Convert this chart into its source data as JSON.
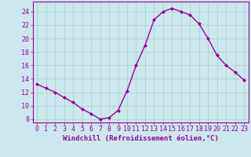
{
  "x": [
    0,
    1,
    2,
    3,
    4,
    5,
    6,
    7,
    8,
    9,
    10,
    11,
    12,
    13,
    14,
    15,
    16,
    17,
    18,
    19,
    20,
    21,
    22,
    23
  ],
  "y": [
    13.2,
    12.6,
    12.0,
    11.2,
    10.5,
    9.5,
    8.8,
    8.0,
    8.2,
    9.3,
    12.2,
    16.0,
    19.0,
    22.8,
    24.0,
    24.5,
    24.0,
    23.5,
    22.2,
    20.0,
    17.5,
    16.0,
    15.0,
    13.8
  ],
  "line_color": "#990099",
  "marker": "D",
  "marker_size": 2.0,
  "bg_color": "#cce8ef",
  "grid_color": "#aacccc",
  "ylabel_values": [
    8,
    10,
    12,
    14,
    16,
    18,
    20,
    22,
    24
  ],
  "xlabel": "Windchill (Refroidissement éolien,°C)",
  "ylim": [
    7.5,
    25.5
  ],
  "xlim": [
    -0.5,
    23.5
  ],
  "xlabel_fontsize": 6.5,
  "tick_fontsize": 6,
  "line_width": 1.0
}
